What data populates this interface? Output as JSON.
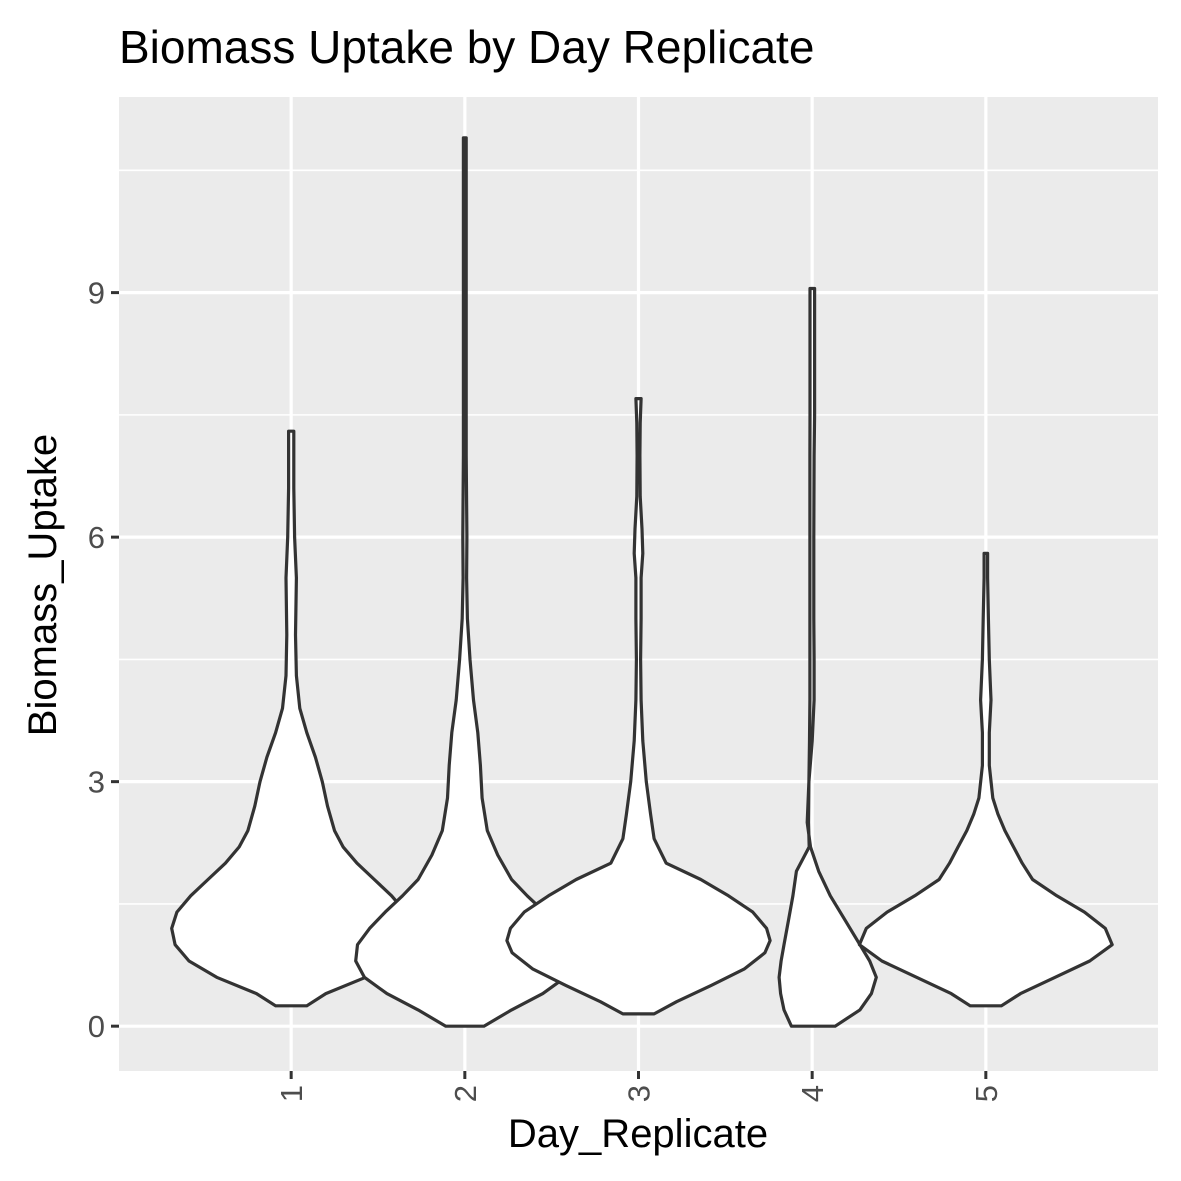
{
  "chart_data": {
    "type": "violin",
    "title": "Biomass Uptake by Day Replicate",
    "xlabel": "Day_Replicate",
    "ylabel": "Biomass_Uptake",
    "categories": [
      "1",
      "2",
      "3",
      "4",
      "5"
    ],
    "y_ticks": [
      0,
      3,
      6,
      9
    ],
    "ylim": [
      -0.55,
      11.4
    ],
    "grid": true,
    "legend": "none",
    "colors": {
      "panel": "#ebebeb",
      "grid": "#ffffff",
      "violin_fill": "#ffffff",
      "violin_stroke": "#333333",
      "tick": "#333333"
    },
    "violins": [
      {
        "category": "1",
        "min": 0.25,
        "max": 7.3,
        "profile": [
          [
            0.25,
            0.09
          ],
          [
            0.4,
            0.2
          ],
          [
            0.6,
            0.43
          ],
          [
            0.8,
            0.59
          ],
          [
            1.0,
            0.67
          ],
          [
            1.2,
            0.69
          ],
          [
            1.4,
            0.66
          ],
          [
            1.6,
            0.58
          ],
          [
            1.8,
            0.48
          ],
          [
            2.0,
            0.38
          ],
          [
            2.2,
            0.3
          ],
          [
            2.4,
            0.25
          ],
          [
            2.7,
            0.21
          ],
          [
            3.0,
            0.18
          ],
          [
            3.3,
            0.14
          ],
          [
            3.6,
            0.09
          ],
          [
            3.9,
            0.05
          ],
          [
            4.3,
            0.03
          ],
          [
            4.8,
            0.025
          ],
          [
            5.5,
            0.03
          ],
          [
            6.0,
            0.02
          ],
          [
            6.6,
            0.015
          ],
          [
            7.3,
            0.015
          ]
        ]
      },
      {
        "category": "2",
        "min": 0.0,
        "max": 10.9,
        "profile": [
          [
            0.0,
            0.11
          ],
          [
            0.2,
            0.27
          ],
          [
            0.4,
            0.45
          ],
          [
            0.6,
            0.58
          ],
          [
            0.8,
            0.63
          ],
          [
            1.0,
            0.62
          ],
          [
            1.2,
            0.55
          ],
          [
            1.4,
            0.46
          ],
          [
            1.6,
            0.36
          ],
          [
            1.8,
            0.27
          ],
          [
            2.1,
            0.19
          ],
          [
            2.4,
            0.13
          ],
          [
            2.8,
            0.1
          ],
          [
            3.2,
            0.09
          ],
          [
            3.6,
            0.075
          ],
          [
            4.0,
            0.05
          ],
          [
            4.5,
            0.03
          ],
          [
            5.0,
            0.015
          ],
          [
            5.5,
            0.01
          ],
          [
            6.0,
            0.012
          ],
          [
            7.0,
            0.008
          ],
          [
            8.0,
            0.008
          ],
          [
            9.0,
            0.008
          ],
          [
            10.0,
            0.008
          ],
          [
            10.9,
            0.008
          ]
        ]
      },
      {
        "category": "3",
        "min": 0.15,
        "max": 7.7,
        "profile": [
          [
            0.15,
            0.09
          ],
          [
            0.3,
            0.22
          ],
          [
            0.5,
            0.42
          ],
          [
            0.7,
            0.61
          ],
          [
            0.9,
            0.73
          ],
          [
            1.05,
            0.76
          ],
          [
            1.2,
            0.74
          ],
          [
            1.4,
            0.66
          ],
          [
            1.6,
            0.52
          ],
          [
            1.8,
            0.36
          ],
          [
            2.0,
            0.16
          ],
          [
            2.3,
            0.09
          ],
          [
            2.6,
            0.07
          ],
          [
            3.0,
            0.045
          ],
          [
            3.5,
            0.025
          ],
          [
            4.0,
            0.015
          ],
          [
            4.5,
            0.012
          ],
          [
            5.0,
            0.015
          ],
          [
            5.5,
            0.015
          ],
          [
            5.8,
            0.025
          ],
          [
            6.1,
            0.02
          ],
          [
            6.5,
            0.01
          ],
          [
            7.0,
            0.008
          ],
          [
            7.4,
            0.01
          ],
          [
            7.7,
            0.015
          ]
        ]
      },
      {
        "category": "4",
        "min": 0.0,
        "max": 9.05,
        "profile": [
          [
            0.0,
            0.12
          ],
          [
            0.2,
            0.27
          ],
          [
            0.4,
            0.34
          ],
          [
            0.6,
            0.37
          ],
          [
            0.8,
            0.33
          ],
          [
            1.0,
            0.27
          ],
          [
            1.3,
            0.18
          ],
          [
            1.6,
            0.09
          ],
          [
            1.9,
            0.02
          ],
          [
            2.2,
            -0.03
          ],
          [
            2.5,
            -0.05
          ],
          [
            3.0,
            -0.04
          ],
          [
            3.5,
            -0.02
          ],
          [
            4.0,
            -0.008
          ],
          [
            4.5,
            -0.008
          ],
          [
            5.0,
            -0.01
          ],
          [
            6.0,
            -0.01
          ],
          [
            7.0,
            -0.008
          ],
          [
            7.5,
            -0.005
          ],
          [
            8.0,
            -0.005
          ],
          [
            9.05,
            -0.005
          ]
        ]
      },
      {
        "category": "5",
        "min": 0.25,
        "max": 5.8,
        "profile": [
          [
            0.25,
            0.09
          ],
          [
            0.4,
            0.2
          ],
          [
            0.6,
            0.4
          ],
          [
            0.8,
            0.6
          ],
          [
            1.0,
            0.73
          ],
          [
            1.2,
            0.69
          ],
          [
            1.4,
            0.57
          ],
          [
            1.6,
            0.41
          ],
          [
            1.8,
            0.27
          ],
          [
            2.0,
            0.21
          ],
          [
            2.2,
            0.16
          ],
          [
            2.4,
            0.11
          ],
          [
            2.6,
            0.07
          ],
          [
            2.8,
            0.04
          ],
          [
            3.2,
            0.02
          ],
          [
            3.6,
            0.02
          ],
          [
            4.0,
            0.03
          ],
          [
            4.5,
            0.02
          ],
          [
            5.0,
            0.015
          ],
          [
            5.5,
            0.01
          ],
          [
            5.8,
            0.01
          ]
        ]
      }
    ],
    "violin_offsets": [
      0,
      0,
      0,
      0.5,
      0
    ]
  }
}
